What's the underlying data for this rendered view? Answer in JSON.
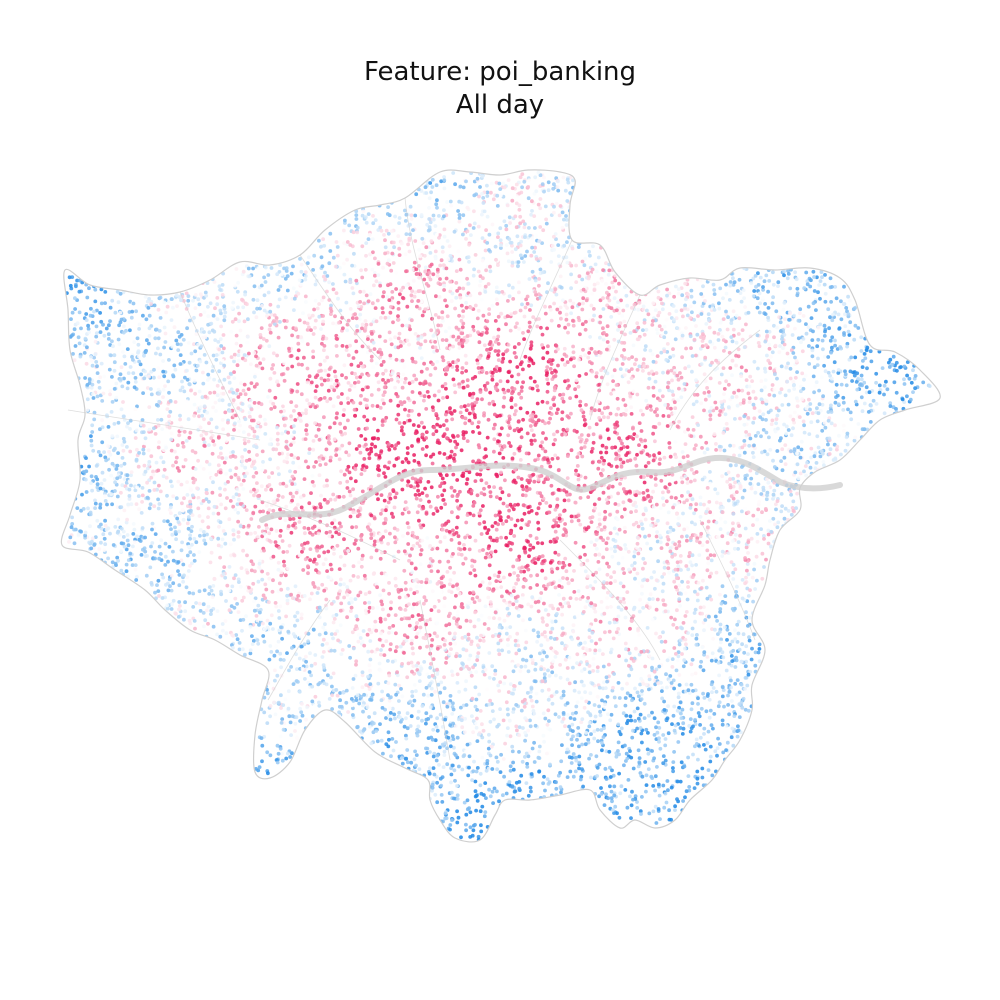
{
  "title": {
    "line1": "Feature: poi_banking",
    "line2": "All day"
  },
  "map": {
    "region": "Greater London",
    "feature": "poi_banking",
    "period": "All day",
    "boundary_color": "#cfcfcf",
    "river_color": "#cfcfcf",
    "low_color": "#1e88e5",
    "high_color": "#e91e63",
    "mid_color": "#ffffff",
    "grid": false,
    "legend": "none"
  }
}
